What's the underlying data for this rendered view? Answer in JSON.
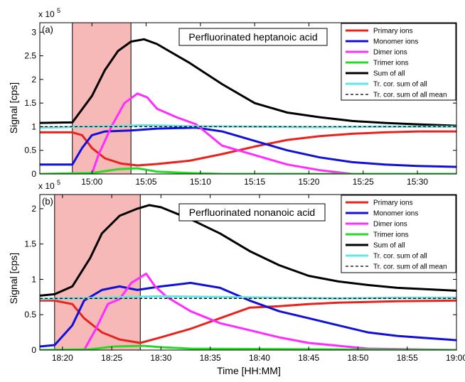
{
  "figure": {
    "ylabel": "Signal [cps]",
    "xlabel": "Time [HH:MM]",
    "legend_entries": [
      {
        "label": "Primary ions",
        "color": "#e8231f",
        "style": "solid"
      },
      {
        "label": "Monomer ions",
        "color": "#1010d8",
        "style": "solid"
      },
      {
        "label": "Dimer ions",
        "color": "#ff2bff",
        "style": "solid"
      },
      {
        "label": "Trimer ions",
        "color": "#22dd22",
        "style": "solid"
      },
      {
        "label": "Sum of all",
        "color": "#000000",
        "style": "solid"
      },
      {
        "label": "Tr. cor. sum of all",
        "color": "#5fe6e6",
        "style": "solid"
      },
      {
        "label": "Tr. cor. sum of all mean",
        "color": "#000000",
        "style": "dashed"
      }
    ],
    "shade_color": "#f7b8b8"
  },
  "chart_data": [
    {
      "type": "line",
      "panel_label": "(a)",
      "title": "Perfluorinated heptanoic acid",
      "y_multiplier": "x 10",
      "y_exponent": "5",
      "xlabel": "",
      "ylabel": "Signal [cps]",
      "xlim": [
        14.92,
        15.56
      ],
      "ylim": [
        0,
        3.2
      ],
      "xticks": [
        15.0,
        15.0833,
        15.1667,
        15.25,
        15.3333,
        15.4167,
        15.5
      ],
      "xtick_labels": [
        "15:00",
        "15:05",
        "15:10",
        "15:15",
        "15:20",
        "15:25",
        "15:30"
      ],
      "yticks": [
        0,
        0.5,
        1,
        1.5,
        2,
        2.5,
        3
      ],
      "ytick_labels": [
        "0",
        "0.5",
        "1",
        "1.5",
        "2",
        "2.5",
        "3"
      ],
      "shaded_region": [
        14.97,
        15.06
      ],
      "legend_position": "top-right",
      "series": [
        {
          "name": "Primary ions",
          "color": "#e8231f",
          "points": [
            [
              14.92,
              0.88
            ],
            [
              14.97,
              0.88
            ],
            [
              14.985,
              0.82
            ],
            [
              15.0,
              0.55
            ],
            [
              15.02,
              0.33
            ],
            [
              15.045,
              0.22
            ],
            [
              15.07,
              0.18
            ],
            [
              15.1,
              0.21
            ],
            [
              15.15,
              0.28
            ],
            [
              15.2,
              0.42
            ],
            [
              15.25,
              0.58
            ],
            [
              15.3,
              0.72
            ],
            [
              15.35,
              0.8
            ],
            [
              15.4,
              0.85
            ],
            [
              15.45,
              0.88
            ],
            [
              15.5,
              0.9
            ],
            [
              15.56,
              0.9
            ]
          ]
        },
        {
          "name": "Monomer ions",
          "color": "#1010d8",
          "points": [
            [
              14.92,
              0.2
            ],
            [
              14.97,
              0.2
            ],
            [
              14.985,
              0.55
            ],
            [
              15.0,
              0.82
            ],
            [
              15.02,
              0.9
            ],
            [
              15.06,
              0.92
            ],
            [
              15.1,
              0.96
            ],
            [
              15.16,
              0.98
            ],
            [
              15.2,
              0.9
            ],
            [
              15.25,
              0.7
            ],
            [
              15.3,
              0.5
            ],
            [
              15.35,
              0.35
            ],
            [
              15.4,
              0.25
            ],
            [
              15.45,
              0.2
            ],
            [
              15.5,
              0.17
            ],
            [
              15.56,
              0.15
            ]
          ]
        },
        {
          "name": "Dimer ions",
          "color": "#ff2bff",
          "points": [
            [
              14.92,
              0
            ],
            [
              15.0,
              0
            ],
            [
              15.01,
              0.4
            ],
            [
              15.03,
              1.0
            ],
            [
              15.05,
              1.5
            ],
            [
              15.07,
              1.7
            ],
            [
              15.085,
              1.62
            ],
            [
              15.1,
              1.38
            ],
            [
              15.13,
              1.2
            ],
            [
              15.16,
              1.05
            ],
            [
              15.2,
              0.6
            ],
            [
              15.25,
              0.4
            ],
            [
              15.3,
              0.2
            ],
            [
              15.35,
              0.08
            ],
            [
              15.4,
              0.0
            ],
            [
              15.56,
              0
            ]
          ]
        },
        {
          "name": "Trimer ions",
          "color": "#22dd22",
          "points": [
            [
              14.92,
              0
            ],
            [
              15.0,
              0.02
            ],
            [
              15.04,
              0.1
            ],
            [
              15.07,
              0.12
            ],
            [
              15.1,
              0.05
            ],
            [
              15.15,
              0.02
            ],
            [
              15.2,
              0.0
            ],
            [
              15.56,
              0
            ]
          ]
        },
        {
          "name": "Sum of all",
          "color": "#000000",
          "points": [
            [
              14.92,
              1.08
            ],
            [
              14.97,
              1.09
            ],
            [
              15.0,
              1.65
            ],
            [
              15.02,
              2.2
            ],
            [
              15.04,
              2.6
            ],
            [
              15.06,
              2.8
            ],
            [
              15.08,
              2.85
            ],
            [
              15.1,
              2.75
            ],
            [
              15.15,
              2.35
            ],
            [
              15.2,
              1.9
            ],
            [
              15.25,
              1.5
            ],
            [
              15.3,
              1.3
            ],
            [
              15.35,
              1.2
            ],
            [
              15.4,
              1.12
            ],
            [
              15.45,
              1.08
            ],
            [
              15.5,
              1.05
            ],
            [
              15.56,
              1.02
            ]
          ]
        },
        {
          "name": "Tr. cor. sum of all",
          "color": "#5fe6e6",
          "points": [
            [
              14.92,
              0.98
            ],
            [
              15.0,
              1.0
            ],
            [
              15.08,
              1.03
            ],
            [
              15.16,
              1.01
            ],
            [
              15.25,
              1.0
            ],
            [
              15.35,
              0.99
            ],
            [
              15.45,
              1.0
            ],
            [
              15.56,
              1.0
            ]
          ]
        },
        {
          "name": "Tr. cor. sum of all mean",
          "color": "#000000",
          "dashed": true,
          "points": [
            [
              14.92,
              1.0
            ],
            [
              15.56,
              1.0
            ]
          ]
        }
      ]
    },
    {
      "type": "line",
      "panel_label": "(b)",
      "title": "Perfluorinated nonanoic acid",
      "y_multiplier": "x 10",
      "y_exponent": "5",
      "xlabel": "Time [HH:MM]",
      "ylabel": "Signal [cps]",
      "xlim": [
        18.295,
        19.0
      ],
      "ylim": [
        0,
        2.2
      ],
      "xticks": [
        18.3333,
        18.4167,
        18.5,
        18.5833,
        18.6667,
        18.75,
        18.8333,
        18.9167,
        19.0
      ],
      "xtick_labels": [
        "18:20",
        "18:25",
        "18:30",
        "18:35",
        "18:40",
        "18:45",
        "18:50",
        "18:55",
        "19:00"
      ],
      "yticks": [
        0,
        0.5,
        1,
        1.5,
        2
      ],
      "ytick_labels": [
        "0",
        "0.5",
        "1",
        "1.5",
        "2"
      ],
      "shaded_region": [
        18.32,
        18.465
      ],
      "legend_position": "top-right",
      "series": [
        {
          "name": "Primary ions",
          "color": "#e8231f",
          "points": [
            [
              18.295,
              0.7
            ],
            [
              18.32,
              0.7
            ],
            [
              18.35,
              0.65
            ],
            [
              18.37,
              0.45
            ],
            [
              18.4,
              0.25
            ],
            [
              18.43,
              0.15
            ],
            [
              18.465,
              0.1
            ],
            [
              18.5,
              0.18
            ],
            [
              18.55,
              0.3
            ],
            [
              18.6,
              0.45
            ],
            [
              18.65,
              0.6
            ],
            [
              18.7,
              0.62
            ],
            [
              18.75,
              0.65
            ],
            [
              18.8,
              0.67
            ],
            [
              18.85,
              0.68
            ],
            [
              18.9,
              0.69
            ],
            [
              19.0,
              0.7
            ]
          ]
        },
        {
          "name": "Monomer ions",
          "color": "#1010d8",
          "points": [
            [
              18.295,
              0.05
            ],
            [
              18.32,
              0.07
            ],
            [
              18.35,
              0.35
            ],
            [
              18.37,
              0.7
            ],
            [
              18.4,
              0.85
            ],
            [
              18.43,
              0.9
            ],
            [
              18.46,
              0.85
            ],
            [
              18.5,
              0.9
            ],
            [
              18.55,
              0.95
            ],
            [
              18.6,
              0.88
            ],
            [
              18.65,
              0.7
            ],
            [
              18.7,
              0.55
            ],
            [
              18.75,
              0.45
            ],
            [
              18.8,
              0.35
            ],
            [
              18.85,
              0.25
            ],
            [
              18.9,
              0.2
            ],
            [
              18.95,
              0.17
            ],
            [
              19.0,
              0.14
            ]
          ]
        },
        {
          "name": "Dimer ions",
          "color": "#ff2bff",
          "points": [
            [
              18.295,
              0
            ],
            [
              18.37,
              0
            ],
            [
              18.39,
              0.3
            ],
            [
              18.41,
              0.65
            ],
            [
              18.43,
              0.72
            ],
            [
              18.45,
              0.95
            ],
            [
              18.475,
              1.08
            ],
            [
              18.49,
              0.9
            ],
            [
              18.51,
              0.75
            ],
            [
              18.55,
              0.55
            ],
            [
              18.6,
              0.38
            ],
            [
              18.65,
              0.28
            ],
            [
              18.7,
              0.18
            ],
            [
              18.75,
              0.1
            ],
            [
              18.8,
              0.06
            ],
            [
              18.85,
              0.02
            ],
            [
              19.0,
              0
            ]
          ]
        },
        {
          "name": "Trimer ions",
          "color": "#22dd22",
          "points": [
            [
              18.295,
              0
            ],
            [
              18.38,
              0.01
            ],
            [
              18.42,
              0.05
            ],
            [
              18.47,
              0.06
            ],
            [
              18.5,
              0.04
            ],
            [
              18.55,
              0.02
            ],
            [
              19.0,
              0
            ]
          ]
        },
        {
          "name": "Sum of all",
          "color": "#000000",
          "points": [
            [
              18.295,
              0.77
            ],
            [
              18.32,
              0.79
            ],
            [
              18.35,
              0.9
            ],
            [
              18.38,
              1.3
            ],
            [
              18.4,
              1.65
            ],
            [
              18.43,
              1.9
            ],
            [
              18.46,
              2.0
            ],
            [
              18.48,
              2.05
            ],
            [
              18.5,
              2.02
            ],
            [
              18.55,
              1.85
            ],
            [
              18.6,
              1.65
            ],
            [
              18.65,
              1.4
            ],
            [
              18.7,
              1.2
            ],
            [
              18.75,
              1.05
            ],
            [
              18.8,
              0.97
            ],
            [
              18.85,
              0.92
            ],
            [
              18.9,
              0.88
            ],
            [
              18.95,
              0.86
            ],
            [
              19.0,
              0.84
            ]
          ]
        },
        {
          "name": "Tr. cor. sum of all",
          "color": "#5fe6e6",
          "points": [
            [
              18.295,
              0.72
            ],
            [
              18.4,
              0.74
            ],
            [
              18.5,
              0.76
            ],
            [
              18.6,
              0.75
            ],
            [
              18.7,
              0.74
            ],
            [
              18.8,
              0.73
            ],
            [
              18.9,
              0.74
            ],
            [
              19.0,
              0.74
            ]
          ]
        },
        {
          "name": "Tr. cor. sum of all mean",
          "color": "#000000",
          "dashed": true,
          "points": [
            [
              18.295,
              0.73
            ],
            [
              19.0,
              0.73
            ]
          ]
        }
      ]
    }
  ]
}
